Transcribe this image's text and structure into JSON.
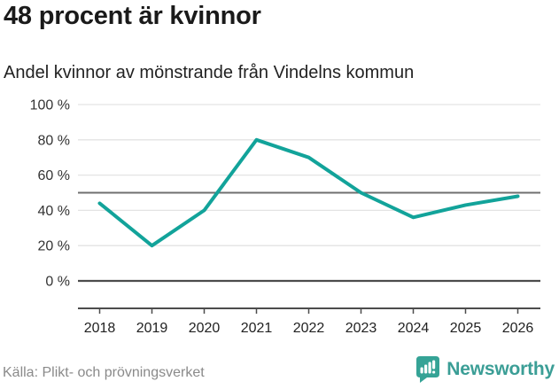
{
  "header": {
    "title": "48 procent är kvinnor",
    "subtitle": "Andel kvinnor av mönstrande från Vindelns kommun"
  },
  "chart_data": {
    "type": "line",
    "title": "48 procent är kvinnor",
    "subtitle": "Andel kvinnor av mönstrande från Vindelns kommun",
    "x": [
      2018,
      2019,
      2020,
      2021,
      2022,
      2023,
      2024,
      2025,
      2026
    ],
    "series": [
      {
        "name": "Andel kvinnor av mönstrande",
        "values": [
          44,
          20,
          40,
          80,
          70,
          50,
          36,
          43,
          48
        ]
      }
    ],
    "unit": "%",
    "ylim": [
      0,
      100
    ],
    "yticks": [
      0,
      20,
      40,
      60,
      80,
      100
    ],
    "ytick_suffix": " %",
    "reference_line": 50,
    "grid": true,
    "legend": "none",
    "line_color": "#12a39a"
  },
  "footer": {
    "source": "Källa: Plikt- och prövningsverket",
    "brand": "Newsworthy"
  },
  "colors": {
    "accent": "#12a39a",
    "grid": "#e3e3e3",
    "reference_line": "#6f6f6f",
    "axis": "#4c4c4c",
    "logo_bubble": "#35a396",
    "wordmark": "#3b9e96"
  },
  "icons": {
    "logo_icon": "newsworthy-speech-bubble-bar-chart"
  }
}
